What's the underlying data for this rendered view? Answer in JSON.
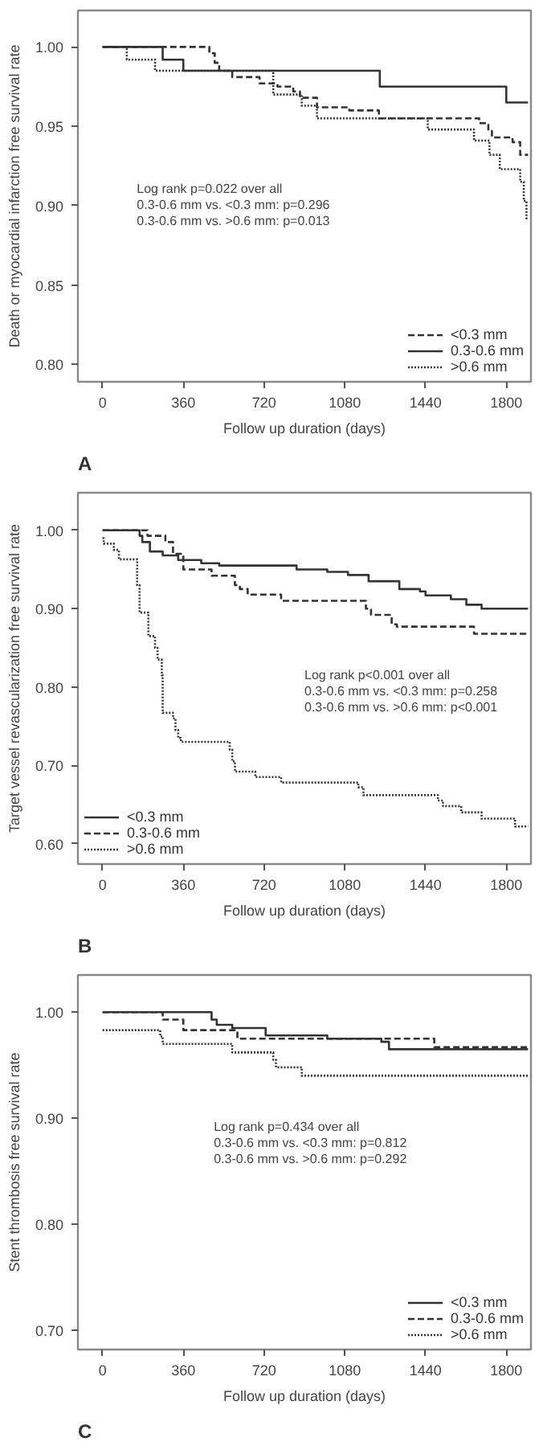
{
  "chart_data": [
    {
      "type": "step",
      "title": "A",
      "xlabel": "Follow up duration (days)",
      "ylabel": "Death or myocardial infarction free survival rate",
      "xlim": [
        -110,
        1910
      ],
      "ylim": [
        0.789,
        1.023
      ],
      "xticks": [
        0,
        360,
        720,
        1080,
        1440,
        1800
      ],
      "yticks": [
        {
          "value": 0.8,
          "label": "0.80"
        },
        {
          "value": 0.85,
          "label": "0.85"
        },
        {
          "value": 0.9,
          "label": "0.90"
        },
        {
          "value": 0.95,
          "label": "0.95"
        },
        {
          "value": 1.0,
          "label": "1.00"
        }
      ],
      "legend": "bottom right",
      "annotations": [
        "Log rank p=0.022 over all",
        "0.3-0.6 mm vs. <0.3 mm: p=0.296",
        "0.3-0.6 mm vs. >0.6 mm: p=0.013"
      ],
      "series": [
        {
          "name": "<0.3 mm",
          "color": "#333333",
          "line_style": "dashed",
          "x": [
            0,
            476,
            500,
            520,
            578,
            700,
            780,
            850,
            880,
            956,
            1100,
            1232,
            1679,
            1720,
            1736,
            1828,
            1862,
            1897
          ],
          "values": [
            1.0,
            0.996,
            0.99,
            0.985,
            0.981,
            0.977,
            0.975,
            0.972,
            0.968,
            0.962,
            0.96,
            0.955,
            0.952,
            0.947,
            0.943,
            0.94,
            0.932,
            0.932
          ]
        },
        {
          "name": "0.3-0.6 mm",
          "color": "#333333",
          "line_style": "solid",
          "x": [
            0,
            268,
            360,
            1236,
            1800,
            1897
          ],
          "values": [
            1.0,
            0.992,
            0.985,
            0.975,
            0.965,
            0.965
          ]
        },
        {
          "name": ">0.6 mm",
          "color": "#333333",
          "line_style": "dotted",
          "x": [
            0,
            108,
            234,
            761,
            888,
            956,
            1450,
            1656,
            1725,
            1771,
            1862,
            1878,
            1890,
            1897
          ],
          "values": [
            1.0,
            0.992,
            0.985,
            0.97,
            0.963,
            0.955,
            0.948,
            0.941,
            0.932,
            0.923,
            0.915,
            0.903,
            0.892,
            0.892
          ]
        }
      ]
    },
    {
      "type": "step",
      "title": "B",
      "xlabel": "Follow up duration (days)",
      "ylabel": "Target vessel revascularization free survival rate",
      "xlim": [
        -110,
        1910
      ],
      "ylim": [
        0.574,
        1.048
      ],
      "xticks": [
        0,
        360,
        720,
        1080,
        1440,
        1800
      ],
      "yticks": [
        {
          "value": 0.6,
          "label": "0.60"
        },
        {
          "value": 0.7,
          "label": "0.70"
        },
        {
          "value": 0.8,
          "label": "0.80"
        },
        {
          "value": 0.9,
          "label": "0.90"
        },
        {
          "value": 1.0,
          "label": "1.00"
        }
      ],
      "legend": "bottom left",
      "annotations": [
        "Log rank p<0.001 over all",
        "0.3-0.6 mm vs. <0.3 mm: p=0.258",
        "0.3-0.6 mm vs. >0.6 mm: p<0.001"
      ],
      "series": [
        {
          "name": "<0.3 mm",
          "color": "#333333",
          "line_style": "solid",
          "x": [
            0,
            165,
            177,
            211,
            268,
            337,
            440,
            520,
            865,
            1002,
            1094,
            1186,
            1323,
            1415,
            1440,
            1553,
            1622,
            1690,
            1805,
            1897
          ],
          "values": [
            1.0,
            0.993,
            0.985,
            0.973,
            0.968,
            0.962,
            0.958,
            0.955,
            0.95,
            0.947,
            0.943,
            0.935,
            0.925,
            0.922,
            0.917,
            0.912,
            0.905,
            0.9,
            0.9,
            0.9
          ]
        },
        {
          "name": "0.3-0.6 mm",
          "color": "#333333",
          "line_style": "dashed",
          "x": [
            0,
            200,
            280,
            314,
            360,
            486,
            590,
            612,
            647,
            796,
            1174,
            1197,
            1289,
            1312,
            1656,
            1897
          ],
          "values": [
            1.0,
            0.993,
            0.985,
            0.97,
            0.95,
            0.942,
            0.93,
            0.925,
            0.918,
            0.91,
            0.9,
            0.892,
            0.88,
            0.877,
            0.868,
            0.868
          ]
        },
        {
          "name": ">0.6 mm",
          "color": "#333333",
          "line_style": "dotted",
          "x": [
            0,
            5,
            50,
            73,
            154,
            165,
            204,
            234,
            245,
            264,
            268,
            314,
            325,
            337,
            349,
            567,
            578,
            590,
            681,
            796,
            1140,
            1163,
            1495,
            1518,
            1599,
            1690,
            1839,
            1897
          ],
          "values": [
            0.99,
            0.983,
            0.975,
            0.963,
            0.93,
            0.895,
            0.865,
            0.85,
            0.835,
            0.815,
            0.767,
            0.76,
            0.745,
            0.735,
            0.73,
            0.72,
            0.705,
            0.692,
            0.685,
            0.678,
            0.672,
            0.662,
            0.655,
            0.648,
            0.64,
            0.632,
            0.622,
            0.622
          ]
        }
      ]
    },
    {
      "type": "step",
      "title": "C",
      "xlabel": "Follow up duration (days)",
      "ylabel": "Stent thrombosis free survival rate",
      "xlim": [
        -110,
        1910
      ],
      "ylim": [
        0.682,
        1.035
      ],
      "xticks": [
        0,
        360,
        720,
        1080,
        1440,
        1800
      ],
      "yticks": [
        {
          "value": 0.7,
          "label": "0.70"
        },
        {
          "value": 0.8,
          "label": "0.80"
        },
        {
          "value": 0.9,
          "label": "0.90"
        },
        {
          "value": 1.0,
          "label": "1.00"
        }
      ],
      "legend": "bottom right",
      "annotations": [
        "Log rank p=0.434 over all",
        "0.3-0.6 mm vs. <0.3 mm: p=0.812",
        "0.3-0.6 mm vs. >0.6 mm: p=0.292"
      ],
      "series": [
        {
          "name": "<0.3 mm",
          "color": "#333333",
          "line_style": "solid",
          "x": [
            0,
            486,
            509,
            578,
            727,
            1002,
            1243,
            1277,
            1897
          ],
          "values": [
            1.0,
            0.993,
            0.988,
            0.985,
            0.978,
            0.975,
            0.972,
            0.965,
            0.965
          ]
        },
        {
          "name": "0.3-0.6 mm",
          "color": "#333333",
          "line_style": "dashed",
          "x": [
            0,
            268,
            360,
            601,
            1479,
            1897
          ],
          "values": [
            1.0,
            0.993,
            0.983,
            0.975,
            0.967,
            0.967
          ]
        },
        {
          "name": ">0.6 mm",
          "color": "#333333",
          "line_style": "dotted",
          "x": [
            0,
            257,
            268,
            578,
            761,
            773,
            888,
            1897
          ],
          "values": [
            0.983,
            0.977,
            0.97,
            0.962,
            0.955,
            0.948,
            0.94,
            0.94
          ]
        }
      ]
    }
  ]
}
